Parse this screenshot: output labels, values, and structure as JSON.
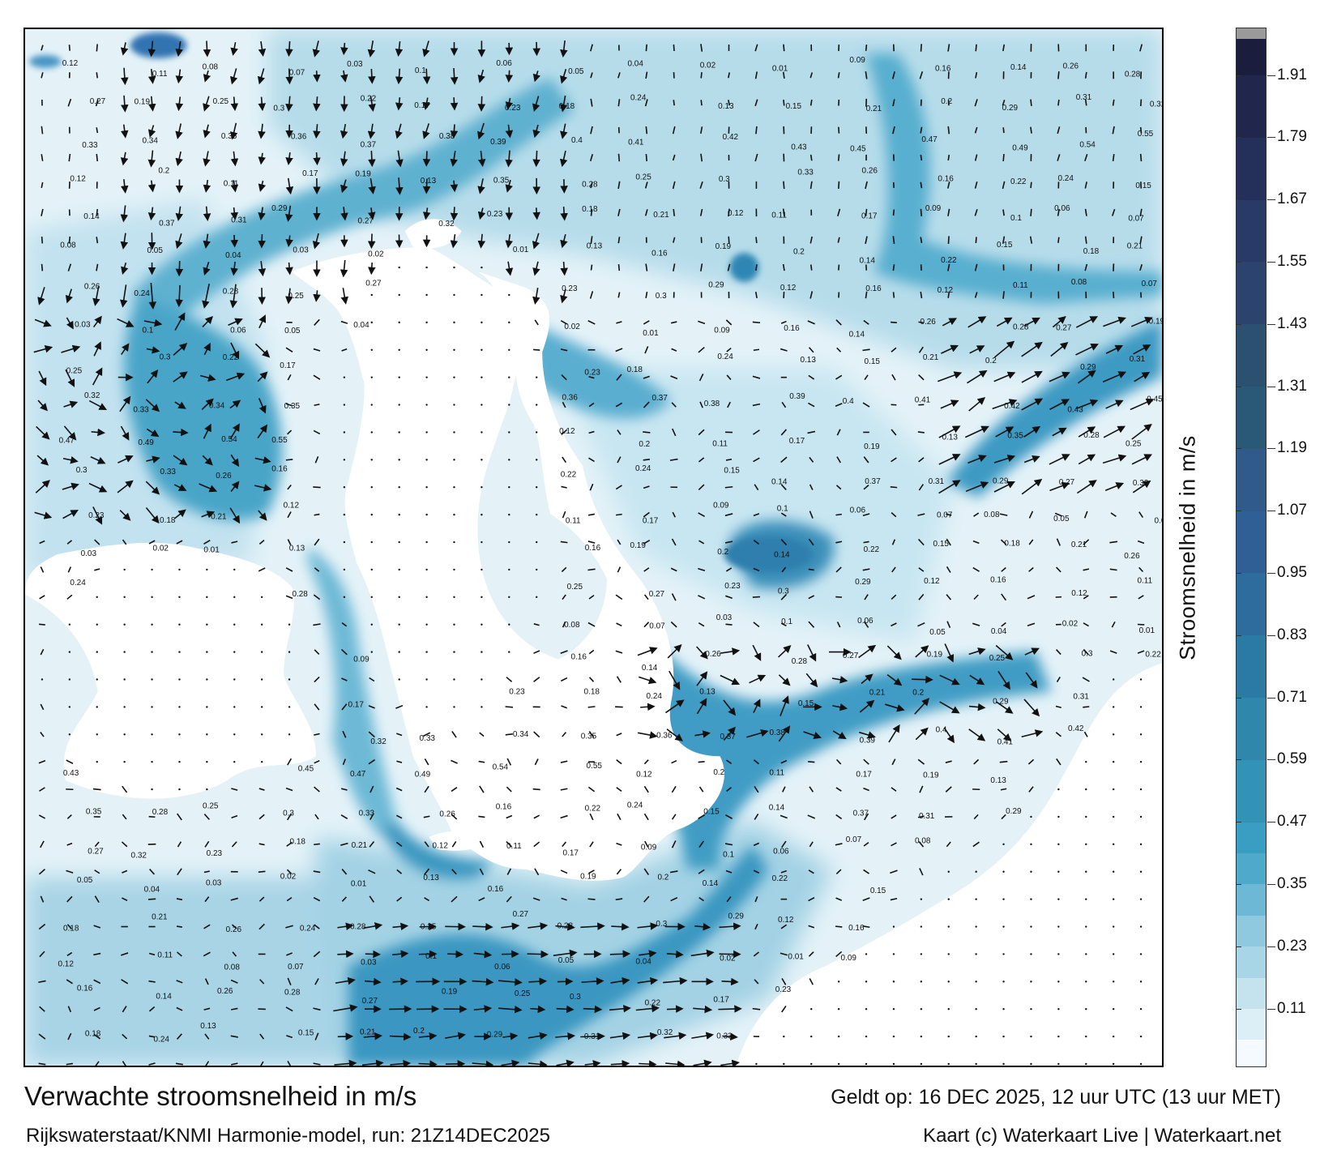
{
  "title": "Verwachte stroomsnelheid in m/s",
  "subtitle": "Rijkswaterstaat/KNMI Harmonie-model, run: 21Z14DEC2025",
  "valid_time": "Geldt op: 16 DEC 2025, 12 uur UTC (13 uur MET)",
  "credit": "Kaart (c) Waterkaart Live | Waterkaart.net",
  "colorbar": {
    "title": "Stroomsnelheid in m/s",
    "min": 0,
    "max": 2.0,
    "ticks": [
      "0.11",
      "0.23",
      "0.35",
      "0.47",
      "0.59",
      "0.71",
      "0.83",
      "0.95",
      "1.07",
      "1.19",
      "1.31",
      "1.43",
      "1.55",
      "1.67",
      "1.79",
      "1.91"
    ],
    "tick_values": [
      0.11,
      0.23,
      0.35,
      0.47,
      0.59,
      0.71,
      0.83,
      0.95,
      1.07,
      1.19,
      1.31,
      1.43,
      1.55,
      1.67,
      1.79,
      1.91
    ],
    "bands": [
      {
        "from": 0.0,
        "to": 0.05,
        "color": "#f4fafd"
      },
      {
        "from": 0.05,
        "to": 0.11,
        "color": "#ddeff6"
      },
      {
        "from": 0.11,
        "to": 0.17,
        "color": "#c5e3ef"
      },
      {
        "from": 0.17,
        "to": 0.23,
        "color": "#a9d6e7"
      },
      {
        "from": 0.23,
        "to": 0.29,
        "color": "#8fc9df"
      },
      {
        "from": 0.29,
        "to": 0.35,
        "color": "#6db8d4"
      },
      {
        "from": 0.35,
        "to": 0.41,
        "color": "#4ea9cb"
      },
      {
        "from": 0.41,
        "to": 0.47,
        "color": "#3a9dc2"
      },
      {
        "from": 0.47,
        "to": 0.59,
        "color": "#3393b7"
      },
      {
        "from": 0.59,
        "to": 0.71,
        "color": "#2f87ab"
      },
      {
        "from": 0.71,
        "to": 0.83,
        "color": "#2b7aa3"
      },
      {
        "from": 0.83,
        "to": 0.95,
        "color": "#2e6c9e"
      },
      {
        "from": 0.95,
        "to": 1.07,
        "color": "#305f96"
      },
      {
        "from": 1.07,
        "to": 1.19,
        "color": "#2f5a8a"
      },
      {
        "from": 1.19,
        "to": 1.31,
        "color": "#2a5877"
      },
      {
        "from": 1.31,
        "to": 1.43,
        "color": "#2b5070"
      },
      {
        "from": 1.43,
        "to": 1.55,
        "color": "#2c436d"
      },
      {
        "from": 1.55,
        "to": 1.67,
        "color": "#2a3a66"
      },
      {
        "from": 1.67,
        "to": 1.79,
        "color": "#25305a"
      },
      {
        "from": 1.79,
        "to": 1.91,
        "color": "#20264c"
      },
      {
        "from": 1.91,
        "to": 1.98,
        "color": "#1a1d3c"
      },
      {
        "from": 1.98,
        "to": 2.0,
        "color": "#9a9a9a"
      }
    ]
  },
  "map": {
    "colors": {
      "land": "#ffffff",
      "low_current": "#dff0f7",
      "mid_current": "#8ecbe0",
      "high_current": "#3596bd"
    },
    "value_labels": [
      "0.12",
      "0.11",
      "0.08",
      "0.07",
      "0.03",
      "0.1",
      "0.06",
      "0.05",
      "0.04",
      "0.02",
      "0.01",
      "0.09",
      "0.16",
      "0.14",
      "0.26",
      "0.28",
      "0.27",
      "0.19",
      "0.25",
      "0.3",
      "0.22",
      "0.17",
      "0.23",
      "0.18",
      "0.24",
      "0.13",
      "0.15",
      "0.21",
      "0.2",
      "0.29",
      "0.31",
      "0.32",
      "0.33",
      "0.34",
      "0.35",
      "0.36",
      "0.37",
      "0.38",
      "0.39",
      "0.4",
      "0.41",
      "0.42",
      "0.43",
      "0.45",
      "0.47",
      "0.49",
      "0.54",
      "0.55",
      "0.12",
      "0.2",
      "0.11",
      "0.17",
      "0.19",
      "0.13",
      "0.35",
      "0.28",
      "0.25",
      "0.3",
      "0.33",
      "0.26",
      "0.16",
      "0.22",
      "0.24",
      "0.15",
      "0.14",
      "0.37",
      "0.31",
      "0.29",
      "0.27",
      "0.32",
      "0.23",
      "0.18",
      "0.21",
      "0.12",
      "0.11",
      "0.17",
      "0.09",
      "0.1",
      "0.06",
      "0.07",
      "0.08",
      "0.05",
      "0.04",
      "0.03",
      "0.02",
      "0.01",
      "0.13",
      "0.16",
      "0.19",
      "0.2",
      "0.14",
      "0.22",
      "0.15",
      "0.18",
      "0.21",
      "0.26",
      "0.24",
      "0.28",
      "0.25",
      "0.27",
      "0.23",
      "0.3",
      "0.29",
      "0.12",
      "0.16"
    ]
  }
}
